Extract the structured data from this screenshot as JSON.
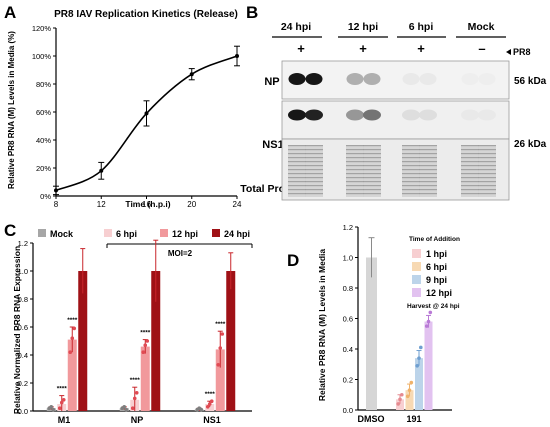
{
  "panels": {
    "A": {
      "letter": "A"
    },
    "B": {
      "letter": "B"
    },
    "C": {
      "letter": "C"
    },
    "D": {
      "letter": "D"
    }
  },
  "chart_data": [
    {
      "panel": "A",
      "type": "line",
      "title": "PR8 IAV Replication Kinetics (Release)",
      "xlabel": "Time (h.p.i)",
      "ylabel": "Relative PR8 RNA (M) Levels in Media (%)",
      "x": [
        8,
        12,
        16,
        20,
        24
      ],
      "y": [
        4,
        18,
        59,
        87,
        100
      ],
      "err": [
        3,
        6,
        9,
        4,
        7
      ],
      "xticks": [
        8,
        12,
        16,
        20,
        24
      ],
      "yticks": [
        0,
        20,
        40,
        60,
        80,
        100,
        120
      ],
      "xlim": [
        8,
        24
      ],
      "ylim": [
        0,
        120
      ],
      "tick_suffix": "%",
      "color": "#000000"
    },
    {
      "panel": "C",
      "type": "bar",
      "ylabel": "Relative Normalized PR8 RNA Expression",
      "categories": [
        "M1",
        "NP",
        "NS1"
      ],
      "yticks": [
        0,
        0.2,
        0.4,
        0.6,
        0.8,
        1.0,
        1.2
      ],
      "ytick_labels": [
        "0.0",
        "0.2",
        "0.4",
        "0.6",
        "0.8",
        "1.0",
        "1.2"
      ],
      "ylim": [
        0,
        1.2
      ],
      "series": [
        {
          "name": "Mock",
          "color": "#a6a6a6",
          "values": [
            0.02,
            0.02,
            0.01
          ],
          "err": [
            0.01,
            0.01,
            0.01
          ],
          "points": [
            [
              0.02,
              0.03,
              0.01
            ],
            [
              0.02,
              0.03,
              0.01
            ],
            [
              0.01,
              0.02,
              0.01
            ]
          ]
        },
        {
          "name": "6 hpi",
          "color": "#f7cfd1",
          "values": [
            0.05,
            0.08,
            0.05
          ],
          "err": [
            0.06,
            0.09,
            0.02
          ],
          "points": [
            [
              0.02,
              0.06,
              0.08
            ],
            [
              0.02,
              0.09,
              0.13
            ],
            [
              0.03,
              0.05,
              0.07
            ]
          ]
        },
        {
          "name": "12 hpi",
          "color": "#f1999c",
          "values": [
            0.51,
            0.46,
            0.44
          ],
          "err": [
            0.09,
            0.05,
            0.13
          ],
          "points": [
            [
              0.42,
              0.52,
              0.59
            ],
            [
              0.42,
              0.47,
              0.5
            ],
            [
              0.33,
              0.45,
              0.55
            ]
          ]
        },
        {
          "name": "24 hpi",
          "color": "#9f1116",
          "values": [
            1.0,
            1.0,
            1.0
          ],
          "err": [
            0.16,
            0.22,
            0.13
          ],
          "points": []
        }
      ],
      "significance": [
        "****",
        "****",
        "****",
        "****",
        "****",
        "****"
      ],
      "annotation": "MOI=2"
    },
    {
      "panel": "D",
      "type": "bar",
      "ylabel": "Relative PR8 RNA (M) Levels in Media",
      "categories": [
        "DMSO",
        "191"
      ],
      "yticks": [
        0,
        0.2,
        0.4,
        0.6,
        0.8,
        1.0,
        1.2
      ],
      "ytick_labels": [
        "0.0",
        "0.2",
        "0.4",
        "0.6",
        "0.8",
        "1.0",
        "1.2"
      ],
      "ylim": [
        0,
        1.2
      ],
      "legend_title": "Time of Addition",
      "note": "Harvest @ 24 hpi",
      "dmso": {
        "value": 1.0,
        "err": 0.13,
        "color": "#d6d6d6"
      },
      "series": [
        {
          "name": "1 hpi",
          "color": "#f7cfd1",
          "value": 0.07,
          "err": 0.03,
          "points": [
            0.04,
            0.07,
            0.1
          ]
        },
        {
          "name": "6 hpi",
          "color": "#f7d9b3",
          "value": 0.13,
          "err": 0.04,
          "points": [
            0.09,
            0.13,
            0.18
          ]
        },
        {
          "name": "9 hpi",
          "color": "#bcd4ea",
          "value": 0.34,
          "err": 0.05,
          "points": [
            0.29,
            0.34,
            0.41
          ]
        },
        {
          "name": "12 hpi",
          "color": "#e2c2f0",
          "value": 0.58,
          "err": 0.04,
          "points": [
            0.55,
            0.58,
            0.64
          ]
        }
      ]
    }
  ],
  "blot": {
    "conditions": [
      "24 hpi",
      "12 hpi",
      "6 hpi",
      "Mock"
    ],
    "signs": [
      "+",
      "+",
      "+",
      "–"
    ],
    "virus_label": "PR8",
    "rows": [
      {
        "label": "NP",
        "kda": "56 kDa"
      },
      {
        "label": "NS1",
        "kda": "26 kDa"
      },
      {
        "label": "Total Protein",
        "kda": ""
      }
    ],
    "np_intensity": [
      0.95,
      0.95,
      0.3,
      0.3,
      0.05,
      0.05,
      0.03,
      0.03
    ],
    "ns1_intensity": [
      0.95,
      0.9,
      0.4,
      0.55,
      0.1,
      0.1,
      0.05,
      0.05
    ]
  }
}
